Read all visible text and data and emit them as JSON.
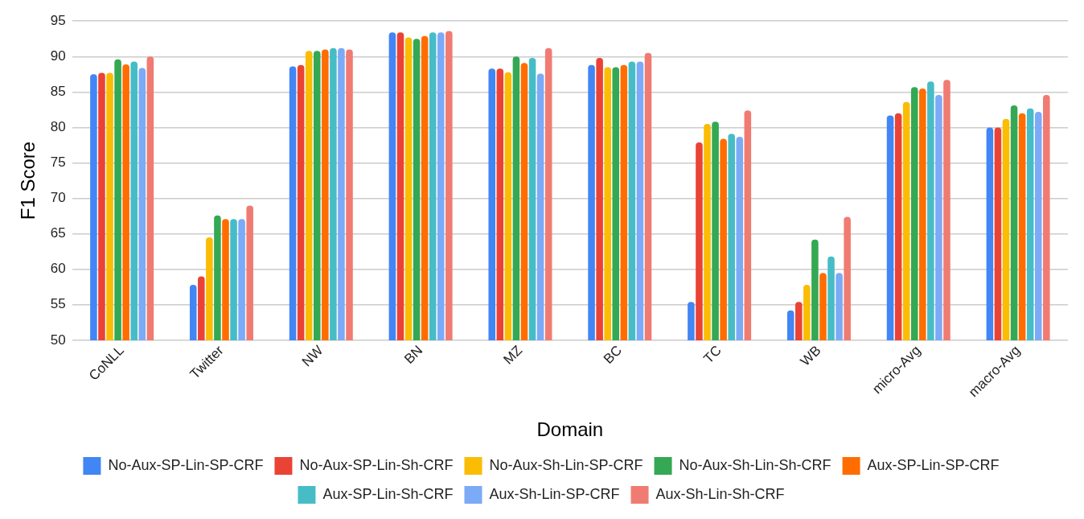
{
  "chart_data": {
    "type": "bar",
    "xlabel": "Domain",
    "ylabel": "F1 Score",
    "categories": [
      "CoNLL",
      "Twitter",
      "NW",
      "BN",
      "MZ",
      "BC",
      "TC",
      "WB",
      "micro-Avg",
      "macro-Avg"
    ],
    "series": [
      {
        "name": "No-Aux-SP-Lin-SP-CRF",
        "color": "#4285f4",
        "values": [
          87.5,
          57.8,
          88.6,
          93.4,
          88.3,
          88.8,
          55.4,
          54.2,
          81.7,
          80.0
        ]
      },
      {
        "name": "No-Aux-SP-Lin-Sh-CRF",
        "color": "#ea4335",
        "values": [
          87.7,
          59.0,
          88.8,
          93.4,
          88.3,
          89.8,
          77.9,
          55.4,
          82.0,
          80.0
        ]
      },
      {
        "name": "No-Aux-Sh-Lin-SP-CRF",
        "color": "#fbbc04",
        "values": [
          87.7,
          64.5,
          90.8,
          92.7,
          87.8,
          88.5,
          80.5,
          57.8,
          83.6,
          81.2
        ]
      },
      {
        "name": "No-Aux-Sh-Lin-Sh-CRF",
        "color": "#34a853",
        "values": [
          89.6,
          67.6,
          90.8,
          92.5,
          90.0,
          88.5,
          80.8,
          64.2,
          85.7,
          83.1
        ]
      },
      {
        "name": "Aux-SP-Lin-SP-CRF",
        "color": "#ff6d01",
        "values": [
          88.9,
          67.1,
          91.0,
          92.9,
          89.1,
          88.8,
          78.4,
          59.5,
          85.5,
          82.0
        ]
      },
      {
        "name": "Aux-SP-Lin-Sh-CRF",
        "color": "#46bdc6",
        "values": [
          89.3,
          67.1,
          91.2,
          93.4,
          89.8,
          89.3,
          79.1,
          61.8,
          86.5,
          82.7
        ]
      },
      {
        "name": "Aux-Sh-Lin-SP-CRF",
        "color": "#7baaf7",
        "values": [
          88.4,
          67.1,
          91.2,
          93.4,
          87.6,
          89.3,
          78.7,
          59.5,
          84.6,
          82.2
        ]
      },
      {
        "name": "Aux-Sh-Lin-Sh-CRF",
        "color": "#f07b72",
        "values": [
          90.0,
          69.0,
          91.0,
          93.6,
          91.2,
          90.5,
          82.4,
          67.4,
          86.7,
          84.6
        ]
      }
    ],
    "ylim": [
      50,
      95
    ],
    "yticks": [
      50,
      55,
      60,
      65,
      70,
      75,
      80,
      85,
      90,
      95
    ],
    "grid": "y",
    "legend": "bottom"
  }
}
